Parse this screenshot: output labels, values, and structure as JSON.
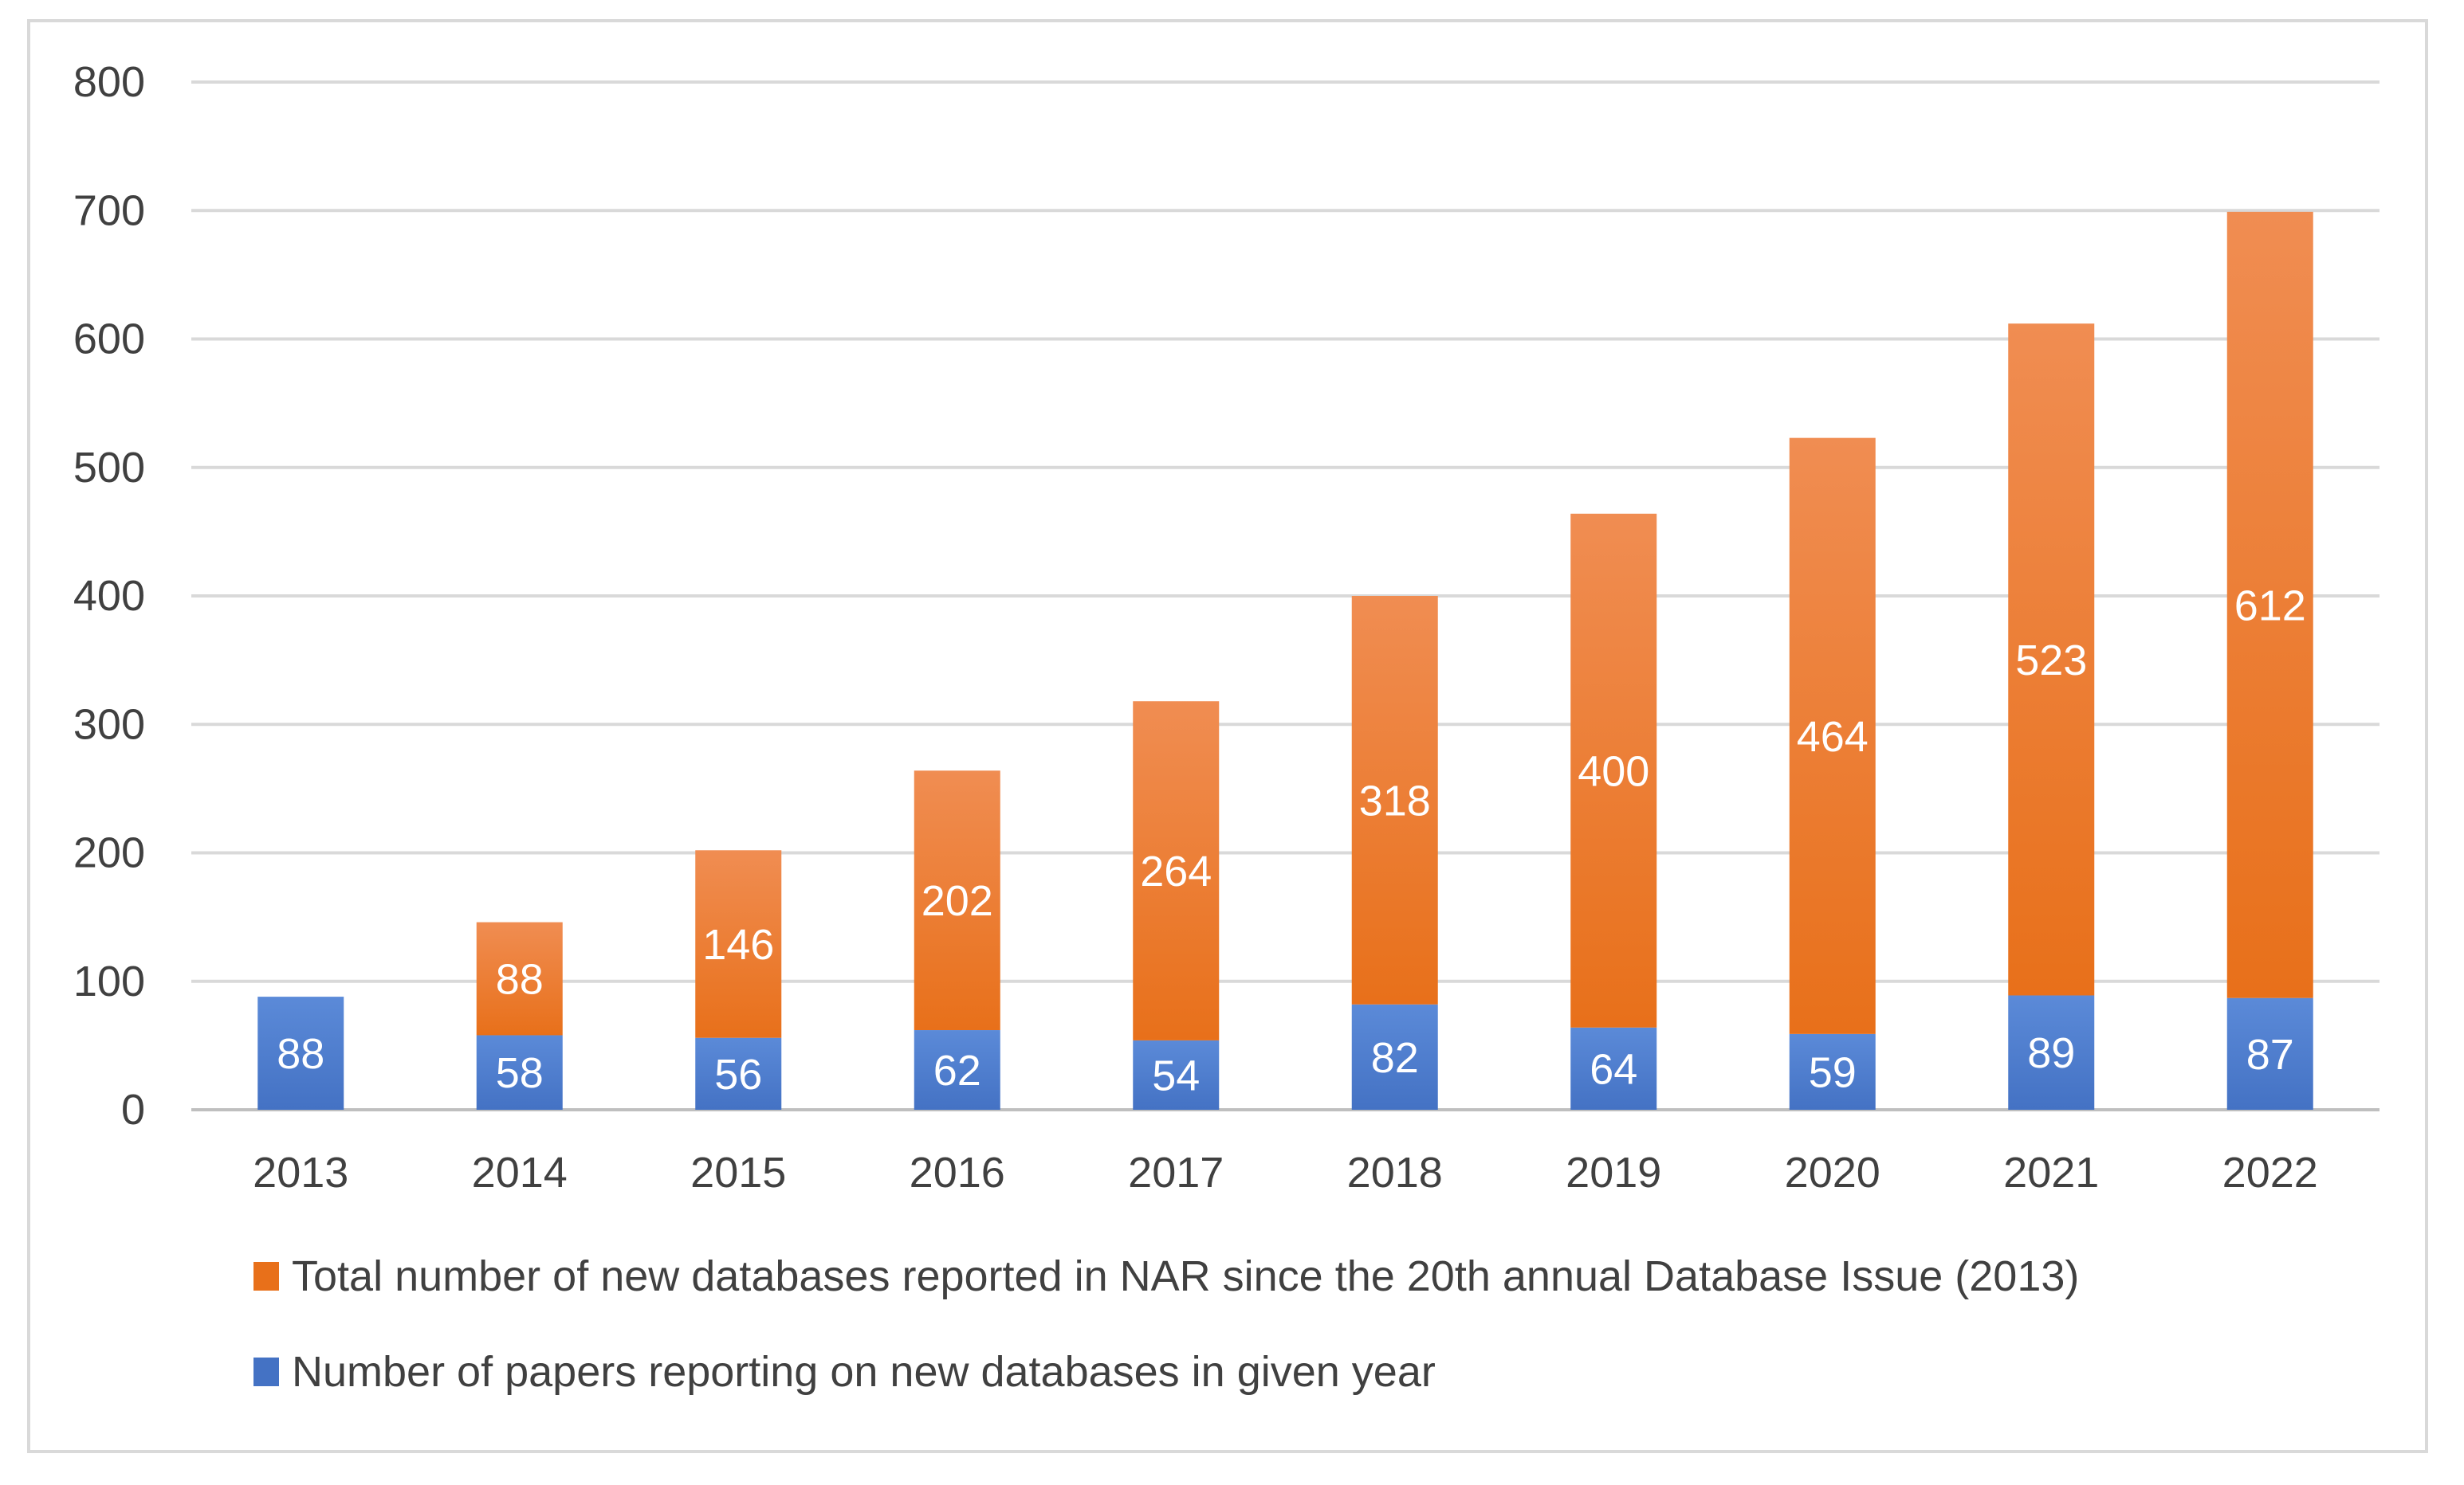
{
  "chart_data": {
    "type": "bar",
    "stacked": true,
    "categories": [
      "2013",
      "2014",
      "2015",
      "2016",
      "2017",
      "2018",
      "2019",
      "2020",
      "2021",
      "2022"
    ],
    "series": [
      {
        "name": "Number of papers reporting on new databases in given year",
        "values": [
          88,
          58,
          56,
          62,
          54,
          82,
          64,
          59,
          89,
          87
        ],
        "color": "#4472c4",
        "color_light": "#5b8ad8"
      },
      {
        "name": "Total number of new databases reported in NAR since the 20th annual Database Issue (2013)",
        "values": [
          0,
          88,
          146,
          202,
          264,
          318,
          400,
          464,
          523,
          612
        ],
        "color": "#e8701a",
        "color_light": "#f08d52"
      }
    ],
    "ylim": [
      0,
      800
    ],
    "yticks": [
      0,
      100,
      200,
      300,
      400,
      500,
      600,
      700,
      800
    ],
    "grid": true,
    "legend": "bottom",
    "data_labels": true
  }
}
